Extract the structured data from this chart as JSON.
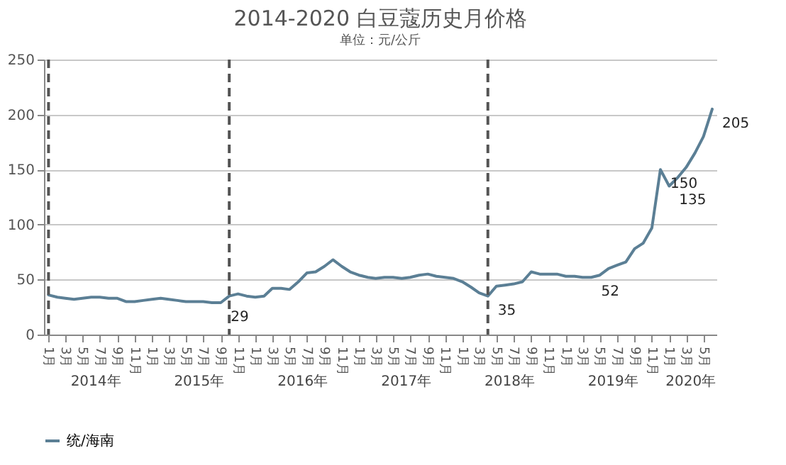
{
  "chart_data": {
    "type": "line",
    "title": "2014-2020 白豆蔻历史月价格",
    "subtitle": "单位：元/公斤",
    "x": [
      "2014-01",
      "2014-02",
      "2014-03",
      "2014-04",
      "2014-05",
      "2014-06",
      "2014-07",
      "2014-08",
      "2014-09",
      "2014-10",
      "2014-11",
      "2014-12",
      "2015-01",
      "2015-02",
      "2015-03",
      "2015-04",
      "2015-05",
      "2015-06",
      "2015-07",
      "2015-08",
      "2015-09",
      "2015-10",
      "2015-11",
      "2015-12",
      "2016-01",
      "2016-02",
      "2016-03",
      "2016-04",
      "2016-05",
      "2016-06",
      "2016-07",
      "2016-08",
      "2016-09",
      "2016-10",
      "2016-11",
      "2016-12",
      "2017-01",
      "2017-02",
      "2017-03",
      "2017-04",
      "2017-05",
      "2017-06",
      "2017-07",
      "2017-08",
      "2017-09",
      "2017-10",
      "2017-11",
      "2017-12",
      "2018-01",
      "2018-02",
      "2018-03",
      "2018-04",
      "2018-05",
      "2018-06",
      "2018-07",
      "2018-08",
      "2018-09",
      "2018-10",
      "2018-11",
      "2018-12",
      "2019-01",
      "2019-02",
      "2019-03",
      "2019-04",
      "2019-05",
      "2019-06",
      "2019-07",
      "2019-08",
      "2019-09",
      "2019-10",
      "2019-11",
      "2019-12",
      "2020-01",
      "2020-02",
      "2020-03",
      "2020-04",
      "2020-05",
      "2020-06"
    ],
    "series": [
      {
        "name": "统/海南",
        "color": "#5b7f95",
        "values": [
          36,
          34,
          33,
          32,
          33,
          34,
          34,
          33,
          33,
          30,
          30,
          31,
          32,
          33,
          32,
          31,
          30,
          30,
          30,
          29,
          29,
          35,
          37,
          35,
          34,
          35,
          42,
          42,
          41,
          48,
          56,
          57,
          62,
          68,
          62,
          57,
          54,
          52,
          51,
          52,
          52,
          51,
          52,
          54,
          55,
          53,
          52,
          51,
          48,
          43,
          38,
          35,
          44,
          45,
          46,
          48,
          57,
          55,
          55,
          55,
          53,
          53,
          52,
          52,
          54,
          60,
          63,
          66,
          78,
          83,
          97,
          150,
          135,
          143,
          152,
          165,
          180,
          205
        ],
        "value_labels": [
          null,
          null,
          null,
          null,
          null,
          null,
          null,
          null,
          null,
          null,
          null,
          null,
          null,
          null,
          null,
          null,
          null,
          null,
          null,
          null,
          "29",
          null,
          null,
          null,
          null,
          null,
          null,
          null,
          null,
          null,
          null,
          null,
          null,
          null,
          null,
          null,
          null,
          null,
          null,
          null,
          null,
          null,
          null,
          null,
          null,
          null,
          null,
          null,
          null,
          null,
          null,
          "35",
          null,
          null,
          null,
          null,
          null,
          null,
          null,
          null,
          null,
          null,
          null,
          "52",
          null,
          null,
          null,
          null,
          null,
          null,
          null,
          "150",
          "135",
          null,
          null,
          null,
          null,
          "205"
        ]
      }
    ],
    "xlim": [
      "2013-12-16",
      "2020-06-16"
    ],
    "xticks": [
      {
        "value": "2014-01",
        "label": "1月"
      },
      {
        "value": "2014-03",
        "label": "3月"
      },
      {
        "value": "2014-05",
        "label": "5月"
      },
      {
        "value": "2014-07",
        "label": "7月"
      },
      {
        "value": "2014-09",
        "label": "9月"
      },
      {
        "value": "2014-11",
        "label": "11月"
      },
      {
        "value": "2015-01",
        "label": "1月"
      },
      {
        "value": "2015-03",
        "label": "3月"
      },
      {
        "value": "2015-05",
        "label": "5月"
      },
      {
        "value": "2015-07",
        "label": "7月"
      },
      {
        "value": "2015-09",
        "label": "9月"
      },
      {
        "value": "2015-11",
        "label": "11月"
      },
      {
        "value": "2016-01",
        "label": "1月"
      },
      {
        "value": "2016-03",
        "label": "3月"
      },
      {
        "value": "2016-05",
        "label": "5月"
      },
      {
        "value": "2016-07",
        "label": "7月"
      },
      {
        "value": "2016-09",
        "label": "9月"
      },
      {
        "value": "2016-11",
        "label": "11月"
      },
      {
        "value": "2017-01",
        "label": "1月"
      },
      {
        "value": "2017-03",
        "label": "3月"
      },
      {
        "value": "2017-05",
        "label": "5月"
      },
      {
        "value": "2017-07",
        "label": "7月"
      },
      {
        "value": "2017-09",
        "label": "9月"
      },
      {
        "value": "2017-11",
        "label": "11月"
      },
      {
        "value": "2018-01",
        "label": "1月"
      },
      {
        "value": "2018-03",
        "label": "3月"
      },
      {
        "value": "2018-05",
        "label": "5月"
      },
      {
        "value": "2018-07",
        "label": "7月"
      },
      {
        "value": "2018-09",
        "label": "9月"
      },
      {
        "value": "2018-11",
        "label": "11月"
      },
      {
        "value": "2019-01",
        "label": "1月"
      },
      {
        "value": "2019-03",
        "label": "3月"
      },
      {
        "value": "2019-05",
        "label": "5月"
      },
      {
        "value": "2019-07",
        "label": "7月"
      },
      {
        "value": "2019-09",
        "label": "9月"
      },
      {
        "value": "2019-11",
        "label": "11月"
      },
      {
        "value": "2020-01",
        "label": "1月"
      },
      {
        "value": "2020-03",
        "label": "3月"
      },
      {
        "value": "2020-05",
        "label": "5月"
      }
    ],
    "ylim": [
      0,
      250
    ],
    "yticks": [
      0,
      50,
      100,
      150,
      200,
      250
    ],
    "grid": "y",
    "ref_lines": [
      {
        "axis": "x",
        "value": "2014-01",
        "color": "#555555",
        "line_style": "dashed"
      },
      {
        "axis": "x",
        "value": "2015-10",
        "color": "#555555",
        "line_style": "dashed"
      },
      {
        "axis": "x",
        "value": "2018-04",
        "color": "#555555",
        "line_style": "dashed"
      }
    ],
    "annotations": [
      "2014年",
      "2015年",
      "2016年",
      "2017年",
      "2018年",
      "2019年",
      "2020年"
    ],
    "legend": "bottom",
    "line_style": "solid"
  }
}
